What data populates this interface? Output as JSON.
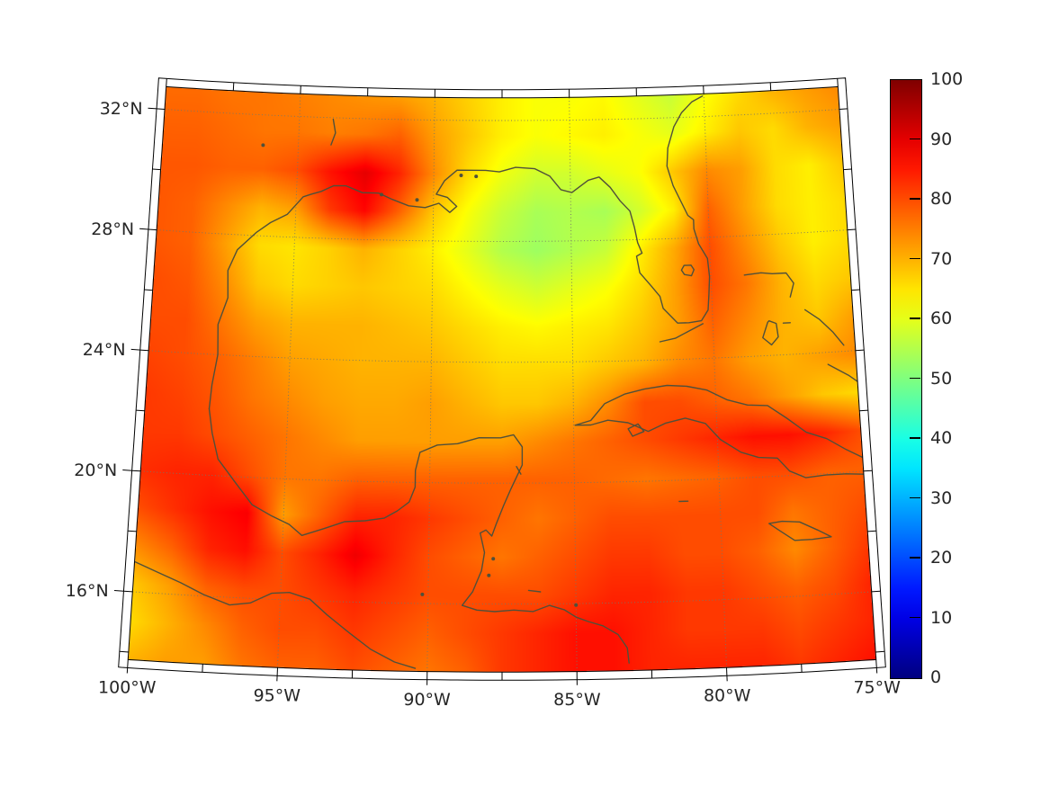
{
  "map": {
    "extent": {
      "lon_min": -100,
      "lon_max": -75,
      "lat_min": 13.75,
      "lat_max": 32.75
    },
    "lat_ticks": [
      {
        "value": 32,
        "label": "32°N"
      },
      {
        "value": 28,
        "label": "28°N"
      },
      {
        "value": 24,
        "label": "24°N"
      },
      {
        "value": 20,
        "label": "20°N"
      },
      {
        "value": 16,
        "label": "16°N"
      }
    ],
    "lon_ticks": [
      {
        "value": -100,
        "label": "100°W"
      },
      {
        "value": -95,
        "label": "95°W"
      },
      {
        "value": -90,
        "label": "90°W"
      },
      {
        "value": -85,
        "label": "85°W"
      },
      {
        "value": -80,
        "label": "80°W"
      },
      {
        "value": -75,
        "label": "75°W"
      }
    ],
    "gridline_lats": [
      16,
      20,
      24,
      28,
      32
    ],
    "gridline_lons": [
      -95,
      -90,
      -85,
      -80
    ]
  },
  "colorbar": {
    "min": 0,
    "max": 100,
    "colormap": "jet",
    "ticks": [
      {
        "value": 0,
        "label": "0"
      },
      {
        "value": 10,
        "label": "10"
      },
      {
        "value": 20,
        "label": "20"
      },
      {
        "value": 30,
        "label": "30"
      },
      {
        "value": 40,
        "label": "40"
      },
      {
        "value": 50,
        "label": "50"
      },
      {
        "value": 60,
        "label": "60"
      },
      {
        "value": 70,
        "label": "70"
      },
      {
        "value": 80,
        "label": "80"
      },
      {
        "value": 90,
        "label": "90"
      },
      {
        "value": 100,
        "label": "100"
      }
    ]
  },
  "colors": {
    "coastline": "#50503a",
    "gridline": "#777766",
    "frame": "#000000",
    "text": "#262626",
    "background": "#ffffff"
  },
  "chart_data": {
    "type": "heatmap",
    "title": "",
    "colormap": "jet",
    "value_range": [
      0,
      100
    ],
    "x_axis": {
      "tick_labels": [
        "100°W",
        "95°W",
        "90°W",
        "85°W",
        "80°W",
        "75°W"
      ],
      "range_deg_lon": [
        -100,
        -75
      ]
    },
    "y_axis": {
      "tick_labels": [
        "32°N",
        "28°N",
        "24°N",
        "20°N",
        "16°N"
      ],
      "range_deg_lat": [
        13.75,
        32.75
      ]
    },
    "legend_position": "right-colorbar",
    "grid_on": true,
    "grid": {
      "nx": 21,
      "ny": 16,
      "lon_start": -100,
      "lon_end": -75,
      "lat_start_north": 32.75,
      "lat_end_south": 13.75,
      "order": "rows north-to-south, columns west-to-east",
      "values": [
        [
          77,
          77,
          76,
          76,
          75,
          74,
          73,
          72,
          70,
          67,
          64,
          62,
          62,
          63,
          60,
          57,
          62,
          66,
          70,
          72,
          74
        ],
        [
          78,
          78,
          77,
          76,
          76,
          75,
          76,
          78,
          72,
          68,
          64,
          62,
          63,
          64,
          62,
          60,
          64,
          68,
          66,
          70,
          72
        ],
        [
          79,
          79,
          78,
          78,
          80,
          86,
          90,
          84,
          74,
          66,
          61,
          58,
          58,
          60,
          62,
          68,
          74,
          72,
          66,
          64,
          68
        ],
        [
          79,
          78,
          74,
          70,
          72,
          82,
          87,
          78,
          68,
          62,
          57,
          54,
          55,
          54,
          58,
          64,
          78,
          72,
          66,
          64,
          66
        ],
        [
          79,
          78,
          72,
          66,
          65,
          67,
          70,
          67,
          64,
          60,
          55,
          53,
          55,
          57,
          64,
          71,
          80,
          74,
          68,
          64,
          66
        ],
        [
          80,
          79,
          74,
          68,
          66,
          67,
          68,
          67,
          66,
          63,
          60,
          58,
          60,
          62,
          66,
          72,
          80,
          76,
          70,
          66,
          68
        ],
        [
          80,
          80,
          76,
          72,
          70,
          70,
          70,
          69,
          68,
          66,
          64,
          63,
          64,
          65,
          68,
          72,
          78,
          74,
          70,
          68,
          72
        ],
        [
          81,
          80,
          78,
          75,
          72,
          71,
          70,
          70,
          70,
          68,
          66,
          66,
          66,
          68,
          70,
          74,
          76,
          72,
          70,
          72,
          74
        ],
        [
          82,
          81,
          79,
          76,
          74,
          72,
          71,
          71,
          72,
          70,
          68,
          68,
          70,
          74,
          80,
          80,
          78,
          76,
          72,
          68,
          66
        ],
        [
          82,
          82,
          80,
          78,
          76,
          74,
          72,
          72,
          72,
          72,
          72,
          74,
          76,
          78,
          80,
          82,
          84,
          86,
          86,
          84,
          80
        ],
        [
          83,
          84,
          84,
          80,
          76,
          76,
          78,
          78,
          78,
          78,
          78,
          78,
          78,
          77,
          76,
          77,
          78,
          80,
          80,
          78,
          78
        ],
        [
          80,
          83,
          86,
          88,
          72,
          78,
          84,
          84,
          82,
          80,
          78,
          76,
          78,
          80,
          80,
          80,
          80,
          80,
          76,
          78,
          80
        ],
        [
          74,
          78,
          84,
          86,
          80,
          84,
          89,
          84,
          80,
          78,
          76,
          78,
          80,
          82,
          82,
          80,
          80,
          78,
          74,
          78,
          82
        ],
        [
          68,
          72,
          78,
          80,
          80,
          82,
          84,
          82,
          80,
          80,
          80,
          80,
          82,
          84,
          84,
          82,
          82,
          80,
          78,
          80,
          84
        ],
        [
          66,
          70,
          74,
          78,
          80,
          80,
          82,
          80,
          78,
          80,
          82,
          84,
          86,
          86,
          84,
          82,
          82,
          82,
          80,
          82,
          84
        ],
        [
          70,
          72,
          72,
          76,
          78,
          78,
          80,
          78,
          76,
          78,
          82,
          84,
          86,
          86,
          84,
          84,
          84,
          84,
          82,
          84,
          86
        ]
      ]
    }
  }
}
